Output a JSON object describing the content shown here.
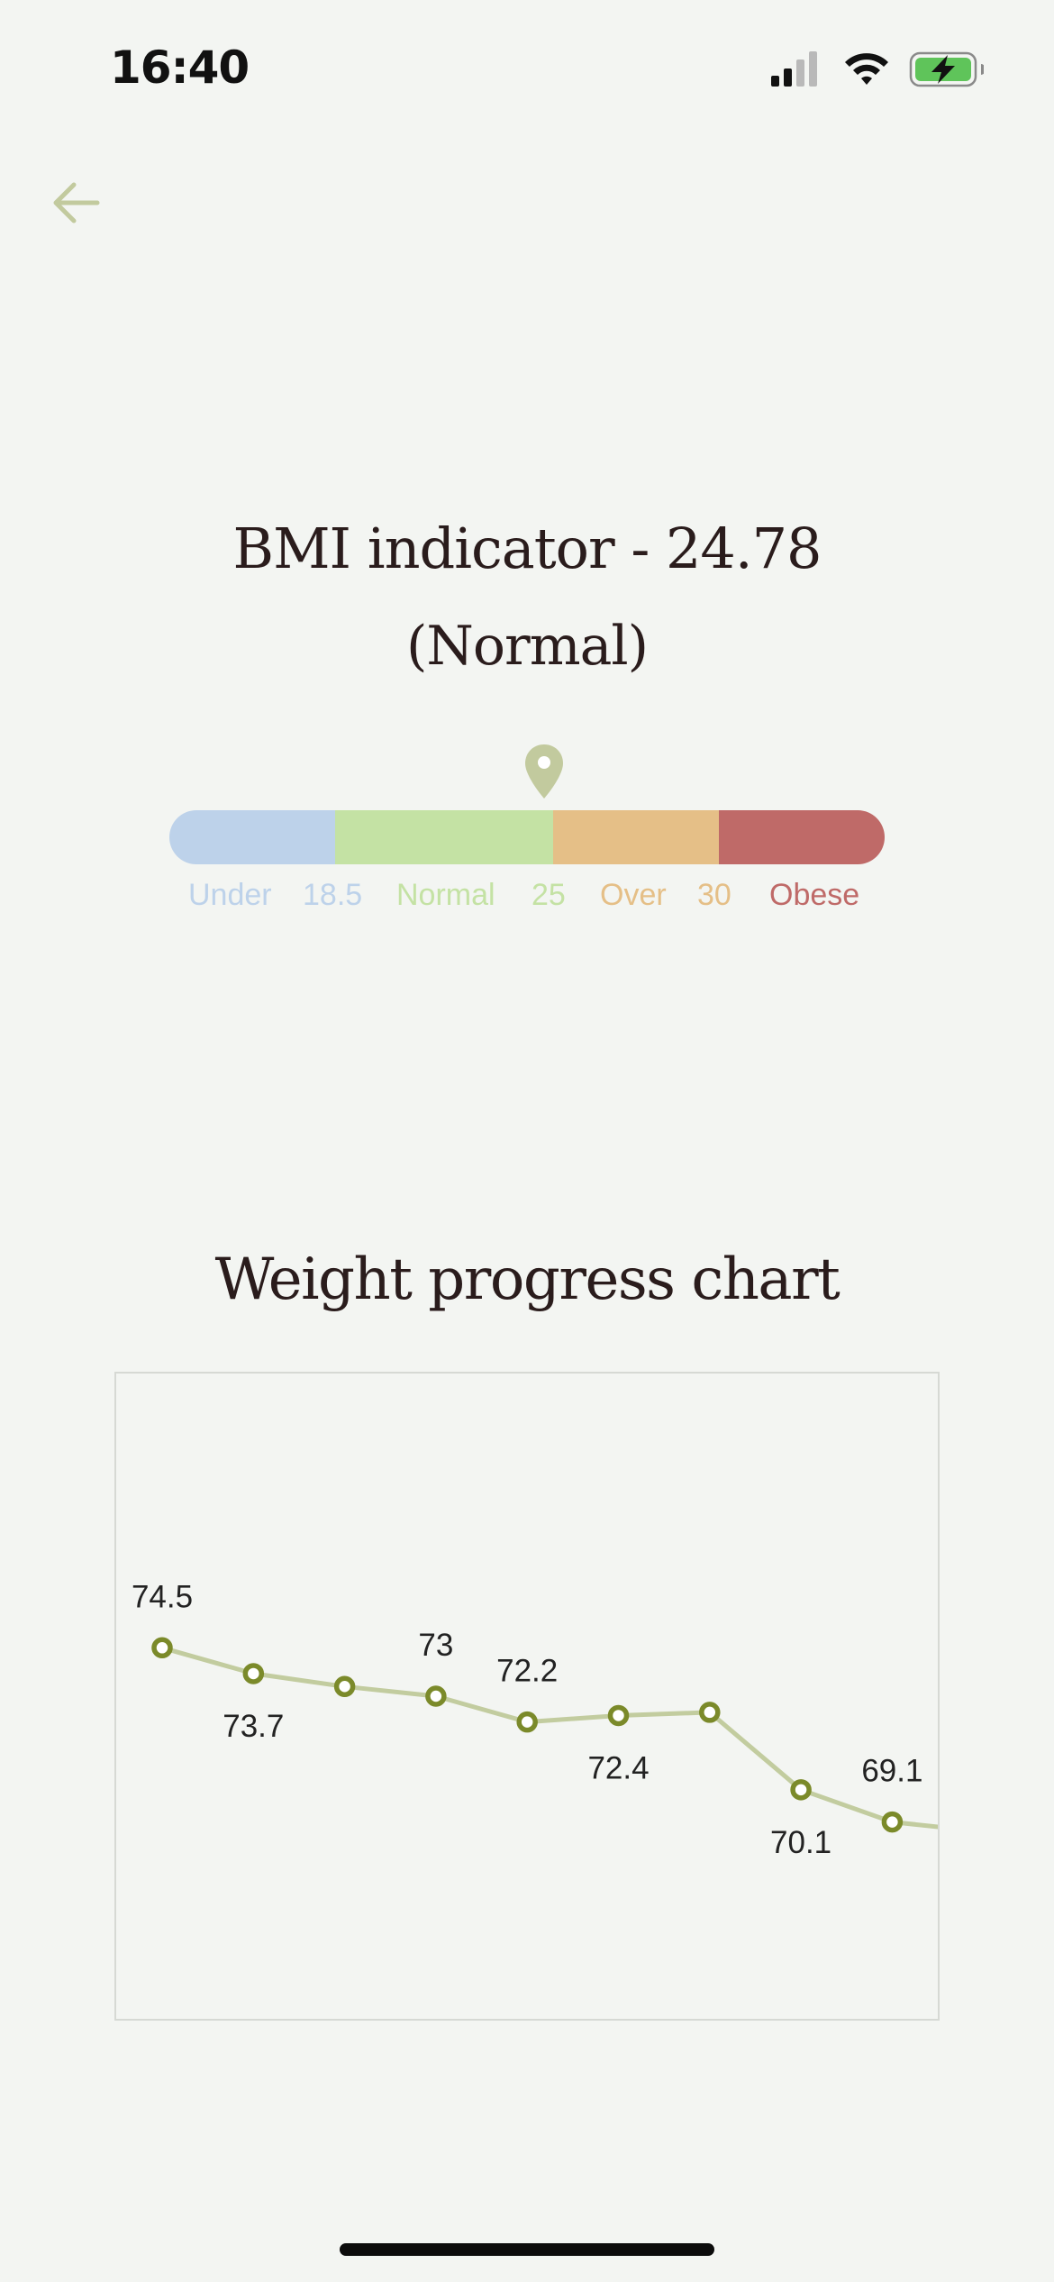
{
  "status_bar": {
    "time": "16:40",
    "icons": [
      "cellular-signal-icon",
      "wifi-icon",
      "battery-charging-icon"
    ],
    "battery_color": "#5fc45a"
  },
  "header": {
    "back_icon": "back-arrow-icon",
    "accent_color": "#c2ca9e"
  },
  "bmi": {
    "title": "BMI indicator - 24.78",
    "status": "(Normal)",
    "value": 24.78,
    "categories": [
      {
        "name": "Under",
        "color": "#bdd2ea"
      },
      {
        "name": "Normal",
        "color": "#c4e2a4"
      },
      {
        "name": "Over",
        "color": "#e5bf87"
      },
      {
        "name": "Obese",
        "color": "#bf6a68"
      }
    ],
    "thresholds": [
      "18.5",
      "25",
      "30"
    ],
    "marker_icon": "location-pin-icon"
  },
  "chart": {
    "title": "Weight progress chart"
  },
  "chart_data": {
    "type": "line",
    "title": "Weight progress chart",
    "xlabel": "",
    "ylabel": "",
    "grid": false,
    "legend": "none",
    "series": [
      {
        "values": [
          74.5,
          73.7,
          73.3,
          73,
          72.2,
          72.4,
          72.5,
          70.1,
          69.1,
          68.8
        ],
        "labels": [
          "74.5",
          "73.7",
          "",
          "73",
          "72.2",
          "72.4",
          "",
          "70.1",
          "69.1",
          ""
        ],
        "line_color": "#c2cc9f",
        "point_color": "#7b8a2a"
      }
    ],
    "ylim": [
      63,
      83
    ]
  }
}
